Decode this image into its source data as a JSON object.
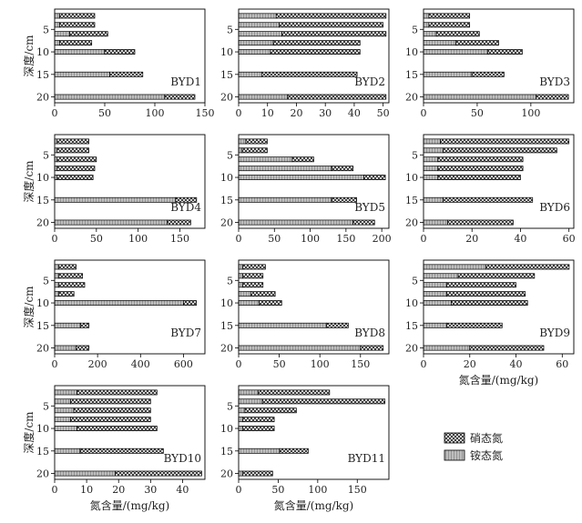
{
  "legend": {
    "items": [
      {
        "label": "硝态氮",
        "pattern": "crosshatch"
      },
      {
        "label": "铵态氮",
        "pattern": "stripes"
      }
    ]
  },
  "colors": {
    "frame": "#000000",
    "ammonium_fill": "#bdbdbd",
    "nitrate_fill": "#ffffff",
    "hatch": "#222222"
  },
  "chart_data": [
    {
      "type": "bar",
      "orientation": "horizontal",
      "stacked": true,
      "panel_label": "BYD1",
      "ylabel": "深度/cm",
      "xlabel": "",
      "y_ticks": [
        "5",
        "10",
        "15",
        "20"
      ],
      "xlim": [
        0,
        150
      ],
      "x_ticks": [
        0,
        50,
        100,
        150
      ],
      "depths": [
        2,
        4,
        6,
        8,
        10,
        15,
        20
      ],
      "series": [
        {
          "name": "铵态氮",
          "values": [
            5,
            5,
            15,
            5,
            50,
            55,
            110
          ]
        },
        {
          "name": "硝态氮",
          "values": [
            35,
            35,
            38,
            32,
            30,
            33,
            30
          ]
        }
      ]
    },
    {
      "type": "bar",
      "orientation": "horizontal",
      "stacked": true,
      "panel_label": "BYD2",
      "ylabel": "",
      "xlabel": "",
      "y_ticks": [
        "5",
        "10",
        "15",
        "20"
      ],
      "xlim": [
        0,
        52
      ],
      "x_ticks": [
        0,
        10,
        20,
        30,
        40,
        50
      ],
      "depths": [
        2,
        4,
        6,
        8,
        10,
        15,
        20
      ],
      "series": [
        {
          "name": "铵态氮",
          "values": [
            13,
            14,
            15,
            12,
            11,
            8,
            17
          ]
        },
        {
          "name": "硝态氮",
          "values": [
            38,
            36,
            36,
            30,
            31,
            33,
            34
          ]
        }
      ]
    },
    {
      "type": "bar",
      "orientation": "horizontal",
      "stacked": true,
      "panel_label": "BYD3",
      "ylabel": "",
      "xlabel": "",
      "y_ticks": [
        "5",
        "10",
        "15",
        "20"
      ],
      "xlim": [
        0,
        140
      ],
      "x_ticks": [
        0,
        50,
        100
      ],
      "depths": [
        2,
        4,
        6,
        8,
        10,
        15,
        20
      ],
      "series": [
        {
          "name": "铵态氮",
          "values": [
            5,
            5,
            12,
            30,
            60,
            45,
            105
          ]
        },
        {
          "name": "硝态氮",
          "values": [
            38,
            38,
            40,
            40,
            32,
            30,
            30
          ]
        }
      ]
    },
    {
      "type": "bar",
      "orientation": "horizontal",
      "stacked": true,
      "panel_label": "BYD4",
      "ylabel": "深度/cm",
      "xlabel": "",
      "y_ticks": [
        "5",
        "10",
        "15",
        "20"
      ],
      "xlim": [
        0,
        180
      ],
      "x_ticks": [
        0,
        50,
        100,
        150
      ],
      "depths": [
        2,
        4,
        6,
        8,
        10,
        15,
        20
      ],
      "series": [
        {
          "name": "铵态氮",
          "values": [
            3,
            3,
            3,
            3,
            3,
            145,
            135
          ]
        },
        {
          "name": "硝态氮",
          "values": [
            38,
            38,
            47,
            45,
            43,
            25,
            28
          ]
        }
      ]
    },
    {
      "type": "bar",
      "orientation": "horizontal",
      "stacked": true,
      "panel_label": "BYD5",
      "ylabel": "",
      "xlabel": "",
      "y_ticks": [
        "5",
        "10",
        "15",
        "20"
      ],
      "xlim": [
        0,
        210
      ],
      "x_ticks": [
        0,
        50,
        100,
        150,
        200
      ],
      "depths": [
        2,
        4,
        6,
        8,
        10,
        15,
        20
      ],
      "series": [
        {
          "name": "铵态氮",
          "values": [
            10,
            5,
            75,
            130,
            175,
            130,
            160
          ]
        },
        {
          "name": "硝态氮",
          "values": [
            30,
            35,
            30,
            30,
            30,
            35,
            30
          ]
        }
      ]
    },
    {
      "type": "bar",
      "orientation": "horizontal",
      "stacked": true,
      "panel_label": "BYD6",
      "ylabel": "",
      "xlabel": "",
      "y_ticks": [
        "5",
        "10",
        "15",
        "20"
      ],
      "xlim": [
        0,
        62
      ],
      "x_ticks": [
        0,
        20,
        40,
        60
      ],
      "depths": [
        2,
        4,
        6,
        8,
        10,
        15,
        20
      ],
      "series": [
        {
          "name": "铵态氮",
          "values": [
            7,
            8,
            6,
            6,
            6,
            8,
            10
          ]
        },
        {
          "name": "硝态氮",
          "values": [
            53,
            47,
            35,
            35,
            34,
            37,
            27
          ]
        }
      ]
    },
    {
      "type": "bar",
      "orientation": "horizontal",
      "stacked": true,
      "panel_label": "BYD7",
      "ylabel": "深度/cm",
      "xlabel": "",
      "y_ticks": [
        "5",
        "10",
        "15",
        "20"
      ],
      "xlim": [
        0,
        700
      ],
      "x_ticks": [
        0,
        200,
        400,
        600
      ],
      "depths": [
        2,
        4,
        6,
        8,
        10,
        15,
        20
      ],
      "series": [
        {
          "name": "铵态氮",
          "values": [
            20,
            20,
            20,
            20,
            600,
            120,
            100
          ]
        },
        {
          "name": "硝态氮",
          "values": [
            80,
            110,
            120,
            70,
            60,
            40,
            60
          ]
        }
      ]
    },
    {
      "type": "bar",
      "orientation": "horizontal",
      "stacked": true,
      "panel_label": "BYD8",
      "ylabel": "",
      "xlabel": "",
      "y_ticks": [
        "5",
        "10",
        "15",
        "20"
      ],
      "xlim": [
        0,
        185
      ],
      "x_ticks": [
        0,
        50,
        100,
        150
      ],
      "depths": [
        2,
        4,
        6,
        8,
        10,
        15,
        20
      ],
      "series": [
        {
          "name": "铵态氮",
          "values": [
            5,
            5,
            5,
            15,
            25,
            108,
            150
          ]
        },
        {
          "name": "硝态氮",
          "values": [
            28,
            25,
            25,
            30,
            28,
            27,
            28
          ]
        }
      ]
    },
    {
      "type": "bar",
      "orientation": "horizontal",
      "stacked": true,
      "panel_label": "BYD9",
      "ylabel": "",
      "xlabel": "氮含量/(mg/kg)",
      "y_ticks": [
        "5",
        "10",
        "15",
        "20"
      ],
      "xlim": [
        0,
        65
      ],
      "x_ticks": [
        0,
        20,
        40,
        60
      ],
      "depths": [
        2,
        4,
        6,
        8,
        10,
        15,
        20
      ],
      "series": [
        {
          "name": "铵态氮",
          "values": [
            27,
            15,
            10,
            10,
            12,
            10,
            20
          ]
        },
        {
          "name": "硝态氮",
          "values": [
            36,
            33,
            30,
            34,
            33,
            24,
            32
          ]
        }
      ]
    },
    {
      "type": "bar",
      "orientation": "horizontal",
      "stacked": true,
      "panel_label": "BYD10",
      "ylabel": "深度/cm",
      "xlabel": "氮含量/(mg/kg)",
      "y_ticks": [
        "5",
        "10",
        "15",
        "20"
      ],
      "xlim": [
        0,
        47
      ],
      "x_ticks": [
        0,
        10,
        20,
        30,
        40
      ],
      "depths": [
        2,
        4,
        6,
        8,
        10,
        15,
        20
      ],
      "series": [
        {
          "name": "铵态氮",
          "values": [
            7,
            5,
            6,
            5,
            7,
            8,
            19
          ]
        },
        {
          "name": "硝态氮",
          "values": [
            25,
            25,
            24,
            25,
            25,
            26,
            27
          ]
        }
      ]
    },
    {
      "type": "bar",
      "orientation": "horizontal",
      "stacked": true,
      "panel_label": "BYD11",
      "ylabel": "",
      "xlabel": "氮含量/(mg/kg)",
      "y_ticks": [
        "5",
        "10",
        "15",
        "20"
      ],
      "xlim": [
        0,
        190
      ],
      "x_ticks": [
        0,
        50,
        100,
        150
      ],
      "depths": [
        2,
        4,
        6,
        8,
        10,
        15,
        20
      ],
      "series": [
        {
          "name": "铵态氮",
          "values": [
            25,
            30,
            8,
            5,
            5,
            52,
            5
          ]
        },
        {
          "name": "硝态氮",
          "values": [
            90,
            155,
            65,
            40,
            40,
            36,
            38
          ]
        }
      ]
    }
  ]
}
